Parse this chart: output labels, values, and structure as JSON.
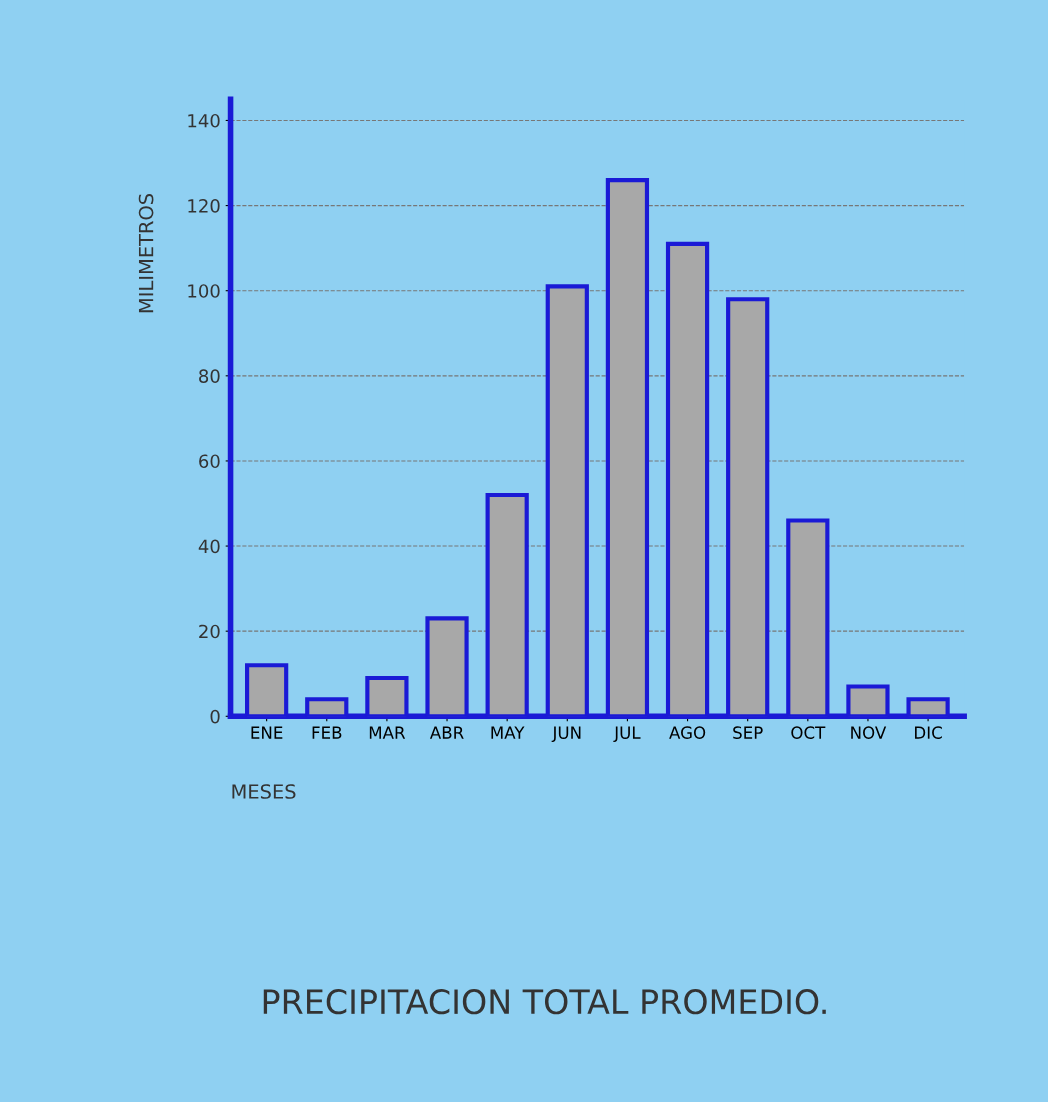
{
  "chart_data": {
    "type": "bar",
    "title": "PRECIPITACION TOTAL PROMEDIO.",
    "xlabel": "MESES",
    "ylabel": "MILIMETROS",
    "categories": [
      "ENE",
      "FEB",
      "MAR",
      "ABR",
      "MAY",
      "JUN",
      "JUL",
      "AGO",
      "SEP",
      "OCT",
      "NOV",
      "DIC"
    ],
    "values": [
      12,
      4,
      9,
      23,
      52,
      101,
      126,
      111,
      98,
      46,
      7,
      4
    ],
    "color": "#a8a8a8",
    "ylim": [
      0,
      145
    ],
    "yticks": [
      0,
      20,
      40,
      60,
      80,
      100,
      120,
      140
    ],
    "grid": "y"
  }
}
